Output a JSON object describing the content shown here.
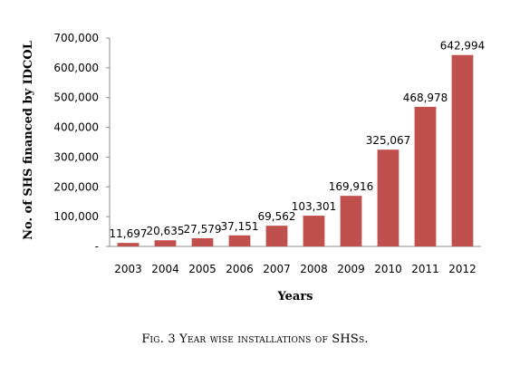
{
  "chart_data": {
    "type": "bar",
    "categories": [
      "2003",
      "2004",
      "2005",
      "2006",
      "2007",
      "2008",
      "2009",
      "2010",
      "2011",
      "2012"
    ],
    "values": [
      11697,
      20635,
      27579,
      37151,
      69562,
      103301,
      169916,
      325067,
      468978,
      642994
    ],
    "data_labels": [
      "11,697",
      "20,635",
      "27,579",
      "37,151",
      "69,562",
      "103,301",
      "169,916",
      "325,067",
      "468,978",
      "642,994"
    ],
    "ylabel": "No. of SHS financed by IDCOL",
    "xlabel": "Years",
    "ylim": [
      0,
      700000
    ],
    "yticks": [
      0,
      100000,
      200000,
      300000,
      400000,
      500000,
      600000,
      700000
    ],
    "ytick_labels": [
      "-",
      "100,000",
      "200,000",
      "300,000",
      "400,000",
      "500,000",
      "600,000",
      "700,000"
    ],
    "grid": false,
    "legend": "none",
    "bar_color": "#c0504d"
  },
  "caption": "Fig. 3 Year wise installations of SHSs."
}
